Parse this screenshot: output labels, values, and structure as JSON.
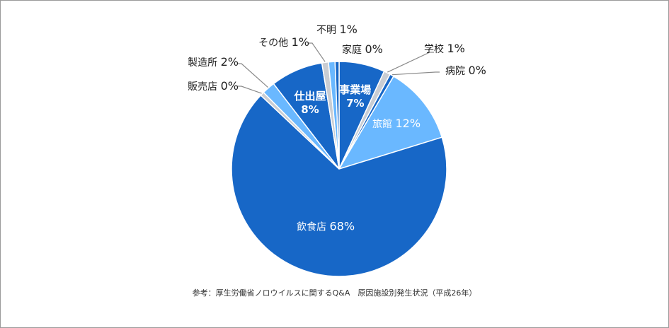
{
  "chart_data": {
    "type": "pie",
    "slices": [
      {
        "label": "事業場",
        "value": 7,
        "text": "7%",
        "color": "#1767c7"
      },
      {
        "label": "学校",
        "value": 1,
        "text": "1%",
        "color": "#c9cdd3"
      },
      {
        "label": "病院",
        "value": 0,
        "text": "0%",
        "color": "#1767c7"
      },
      {
        "label": "旅館",
        "value": 12,
        "text": "12%",
        "color": "#6ab8ff"
      },
      {
        "label": "飲食店",
        "value": 68,
        "text": "68%",
        "color": "#1767c7"
      },
      {
        "label": "販売店",
        "value": 0,
        "text": "0%",
        "color": "#c9cdd3"
      },
      {
        "label": "製造所",
        "value": 2,
        "text": "2%",
        "color": "#6ab8ff"
      },
      {
        "label": "仕出屋",
        "value": 8,
        "text": "8%",
        "color": "#1767c7"
      },
      {
        "label": "その他",
        "value": 1,
        "text": "1%",
        "color": "#c9cdd3"
      },
      {
        "label": "不明",
        "value": 1,
        "text": "1%",
        "color": "#6ab8ff"
      },
      {
        "label": "家庭",
        "value": 0,
        "text": "0%",
        "color": "#1767c7"
      }
    ]
  },
  "caption": "参考：厚生労働省ノロウイルスに関するQ&A　原因施設別発生状況（平成26年）"
}
